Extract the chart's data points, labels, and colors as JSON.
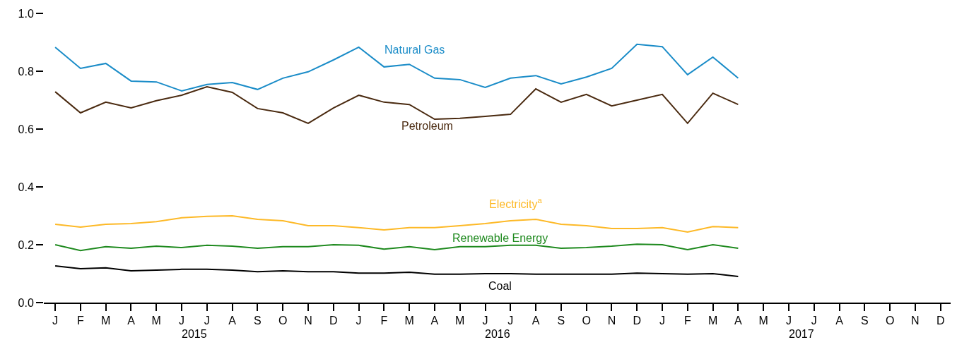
{
  "chart_data": {
    "type": "line",
    "categories": [
      "J",
      "F",
      "M",
      "A",
      "M",
      "J",
      "J",
      "A",
      "S",
      "O",
      "N",
      "D",
      "J",
      "F",
      "M",
      "A",
      "M",
      "J",
      "J",
      "A",
      "S",
      "O",
      "N",
      "D",
      "J",
      "F",
      "M",
      "A",
      "M",
      "J",
      "J",
      "A",
      "S",
      "O",
      "N",
      "D"
    ],
    "series": [
      {
        "name": "Natural Gas",
        "color": "#1a8cc8",
        "values": [
          0.883,
          0.81,
          0.827,
          0.766,
          0.763,
          0.732,
          0.754,
          0.761,
          0.737,
          0.776,
          0.798,
          0.839,
          0.883,
          0.815,
          0.824,
          0.776,
          0.771,
          0.744,
          0.776,
          0.785,
          0.756,
          0.78,
          0.81,
          0.893,
          0.885,
          0.788,
          0.849,
          0.776,
          null,
          null,
          null,
          null,
          null,
          null,
          null,
          null
        ]
      },
      {
        "name": "Petroleum",
        "color": "#4a2a10",
        "values": [
          0.729,
          0.656,
          0.693,
          0.673,
          0.698,
          0.717,
          0.746,
          0.727,
          0.671,
          0.656,
          0.62,
          0.673,
          0.717,
          0.693,
          0.685,
          0.634,
          0.637,
          0.644,
          0.651,
          0.739,
          0.693,
          0.72,
          0.68,
          0.7,
          0.72,
          0.62,
          0.724,
          0.685,
          null,
          null,
          null,
          null,
          null,
          null,
          null,
          null
        ]
      },
      {
        "name": "Electricity$^{a}$",
        "color": "#fdb927",
        "values": [
          0.271,
          0.261,
          0.271,
          0.273,
          0.28,
          0.293,
          0.298,
          0.3,
          0.288,
          0.283,
          0.266,
          0.266,
          0.259,
          0.251,
          0.259,
          0.259,
          0.266,
          0.273,
          0.283,
          0.288,
          0.271,
          0.266,
          0.256,
          0.256,
          0.259,
          0.244,
          0.263,
          0.259,
          null,
          null,
          null,
          null,
          null,
          null,
          null,
          null
        ]
      },
      {
        "name": "Renewable Energy",
        "color": "#1f8a1f",
        "values": [
          0.2,
          0.18,
          0.193,
          0.188,
          0.195,
          0.19,
          0.198,
          0.195,
          0.188,
          0.193,
          0.193,
          0.2,
          0.198,
          0.185,
          0.193,
          0.183,
          0.193,
          0.193,
          0.198,
          0.198,
          0.188,
          0.19,
          0.195,
          0.202,
          0.2,
          0.183,
          0.2,
          0.188,
          null,
          null,
          null,
          null,
          null,
          null,
          null,
          null
        ]
      },
      {
        "name": "Coal",
        "color": "#000000",
        "values": [
          0.127,
          0.117,
          0.12,
          0.11,
          0.112,
          0.115,
          0.115,
          0.112,
          0.107,
          0.11,
          0.107,
          0.107,
          0.102,
          0.102,
          0.105,
          0.098,
          0.098,
          0.1,
          0.1,
          0.098,
          0.098,
          0.098,
          0.098,
          0.102,
          0.1,
          0.098,
          0.1,
          0.09,
          null,
          null,
          null,
          null,
          null,
          null,
          null,
          null
        ]
      }
    ],
    "ylim": [
      0,
      1.0
    ],
    "yticks": [
      {
        "value": 0,
        "label": "0.0"
      },
      {
        "value": 0.2,
        "label": "0.2"
      },
      {
        "value": 0.4,
        "label": "0.4"
      },
      {
        "value": 0.6,
        "label": "0.6"
      },
      {
        "value": 0.8,
        "label": "0.8"
      },
      {
        "value": 1.0,
        "label": "1.0"
      }
    ],
    "annotations": [
      "2015",
      "2016",
      "2017"
    ],
    "marker": "none",
    "line_style": "solid"
  }
}
